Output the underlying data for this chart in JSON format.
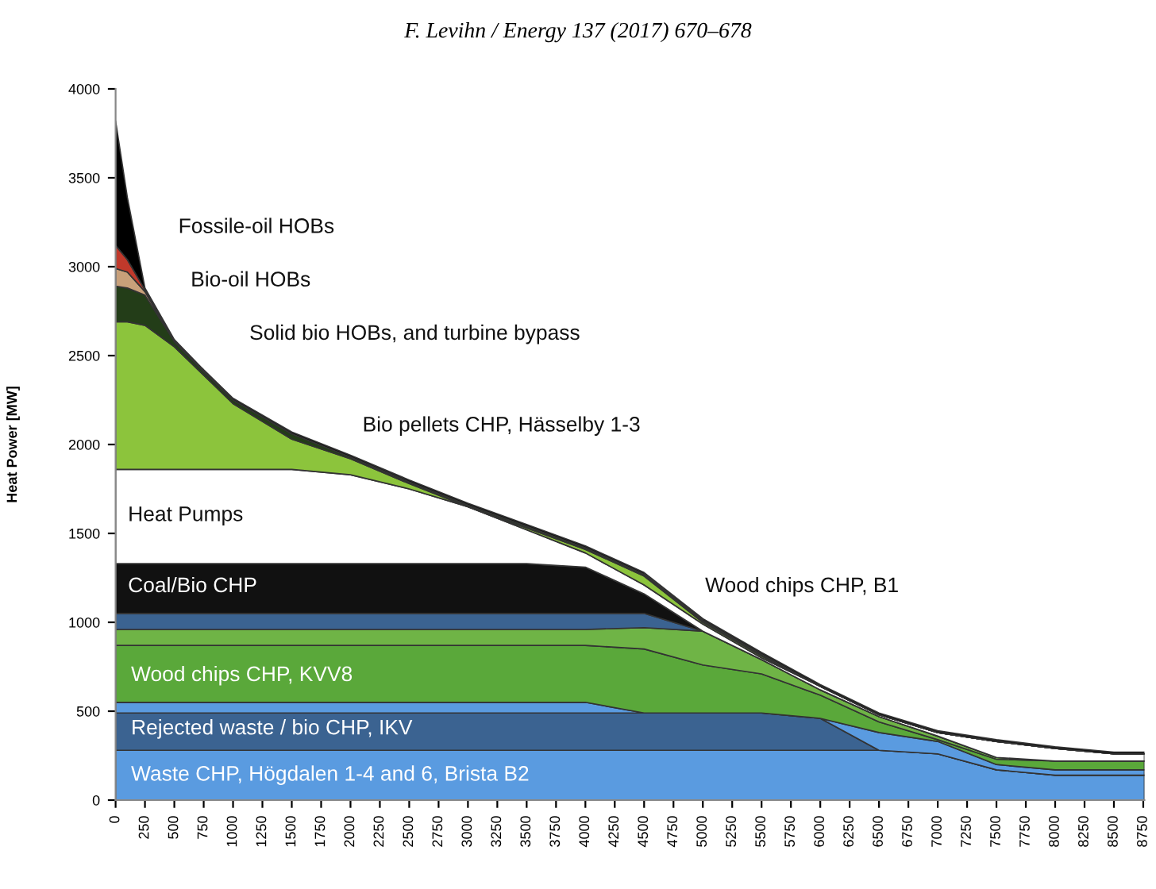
{
  "chart_data": {
    "type": "area",
    "stacked": true,
    "title": "F. Levihn / Energy 137 (2017) 670–678",
    "ylabel": "Heat Power [MW]",
    "x": [
      0,
      100,
      250,
      500,
      750,
      1000,
      1500,
      2000,
      2500,
      3000,
      3500,
      4000,
      4500,
      5000,
      5500,
      6000,
      6500,
      7000,
      7500,
      8000,
      8500,
      8760
    ],
    "series": [
      {
        "color": "#5a9be0",
        "values": [
          280,
          280,
          280,
          280,
          280,
          280,
          280,
          280,
          280,
          280,
          280,
          280,
          280,
          280,
          280,
          280,
          280,
          260,
          170,
          140,
          140,
          140
        ]
      },
      {
        "color": "#3b6391",
        "values": [
          210,
          210,
          210,
          210,
          210,
          210,
          210,
          210,
          210,
          210,
          210,
          210,
          210,
          210,
          210,
          180,
          0,
          0,
          0,
          0,
          0,
          0
        ]
      },
      {
        "color": "#5a9be0",
        "values": [
          60,
          60,
          60,
          60,
          60,
          60,
          60,
          60,
          60,
          60,
          60,
          60,
          0,
          0,
          0,
          0,
          100,
          70,
          30,
          30,
          30,
          30
        ]
      },
      {
        "color": "#5aa83a",
        "values": [
          320,
          320,
          320,
          320,
          320,
          320,
          320,
          320,
          320,
          320,
          320,
          320,
          360,
          270,
          220,
          130,
          60,
          10,
          30,
          50,
          50,
          50
        ]
      },
      {
        "color": "#6fb446",
        "values": [
          90,
          90,
          90,
          90,
          90,
          90,
          90,
          90,
          90,
          90,
          90,
          90,
          120,
          190,
          80,
          30,
          30,
          20,
          10,
          0,
          0,
          0
        ]
      },
      {
        "color": "#3b6391",
        "values": [
          90,
          90,
          90,
          90,
          90,
          90,
          90,
          90,
          90,
          90,
          90,
          90,
          80,
          0,
          0,
          0,
          0,
          0,
          0,
          0,
          0,
          0
        ]
      },
      {
        "color": "#111111",
        "values": [
          280,
          280,
          280,
          280,
          280,
          280,
          280,
          280,
          280,
          280,
          280,
          260,
          110,
          0,
          0,
          0,
          0,
          0,
          0,
          0,
          0,
          0
        ]
      },
      {
        "color": "#ffffff",
        "values": [
          530,
          530,
          530,
          530,
          530,
          530,
          530,
          500,
          420,
          320,
          190,
          80,
          50,
          40,
          10,
          20,
          10,
          20,
          90,
          70,
          40,
          40
        ]
      },
      {
        "color": "#8cc43c",
        "values": [
          830,
          830,
          810,
          690,
          530,
          370,
          170,
          90,
          30,
          0,
          10,
          20,
          50,
          10,
          10,
          0,
          0,
          0,
          0,
          0,
          0,
          0
        ]
      },
      {
        "color": "#233d18",
        "values": [
          200,
          190,
          170,
          30,
          20,
          20,
          30,
          10,
          10,
          10,
          10,
          10,
          10,
          10,
          10,
          0,
          0,
          0,
          0,
          0,
          0,
          0
        ]
      },
      {
        "color": "#c8a07a",
        "values": [
          100,
          90,
          20,
          0,
          0,
          0,
          0,
          0,
          0,
          0,
          0,
          0,
          0,
          0,
          0,
          0,
          0,
          0,
          0,
          0,
          0,
          0
        ]
      },
      {
        "color": "#c0392b",
        "values": [
          130,
          70,
          10,
          0,
          0,
          0,
          0,
          0,
          0,
          0,
          0,
          0,
          0,
          0,
          0,
          0,
          0,
          0,
          0,
          0,
          0,
          0
        ]
      },
      {
        "color": "#000000",
        "values": [
          700,
          350,
          10,
          10,
          10,
          10,
          10,
          10,
          10,
          10,
          10,
          10,
          10,
          10,
          10,
          10,
          10,
          10,
          10,
          10,
          10,
          10
        ]
      }
    ],
    "xlim": [
      0,
      8760
    ],
    "ylim": [
      0,
      4000
    ],
    "xticks": [
      0,
      250,
      500,
      750,
      1000,
      1250,
      1500,
      1750,
      2000,
      2250,
      2500,
      2750,
      3000,
      3250,
      3500,
      3750,
      4000,
      4250,
      4500,
      4750,
      5000,
      5250,
      5500,
      5750,
      6000,
      6250,
      6500,
      6750,
      7000,
      7250,
      7500,
      7750,
      8000,
      8250,
      8500,
      8750
    ],
    "yticks": [
      0,
      500,
      1000,
      1500,
      2000,
      2500,
      3000,
      3500,
      4000
    ],
    "grid": false,
    "annotations": [
      "Fossile-oil HOBs",
      "Bio-oil HOBs",
      "Solid bio HOBs, and turbine bypass",
      "Bio pellets CHP, Hässelby 1-3",
      "Heat Pumps",
      "Coal/Bio CHP",
      "Wood chips CHP, B1",
      "Wood chips CHP, KVV8",
      "Rejected waste / bio CHP, IKV",
      "Waste CHP, Högdalen 1-4 and 6, Brista B2"
    ]
  }
}
